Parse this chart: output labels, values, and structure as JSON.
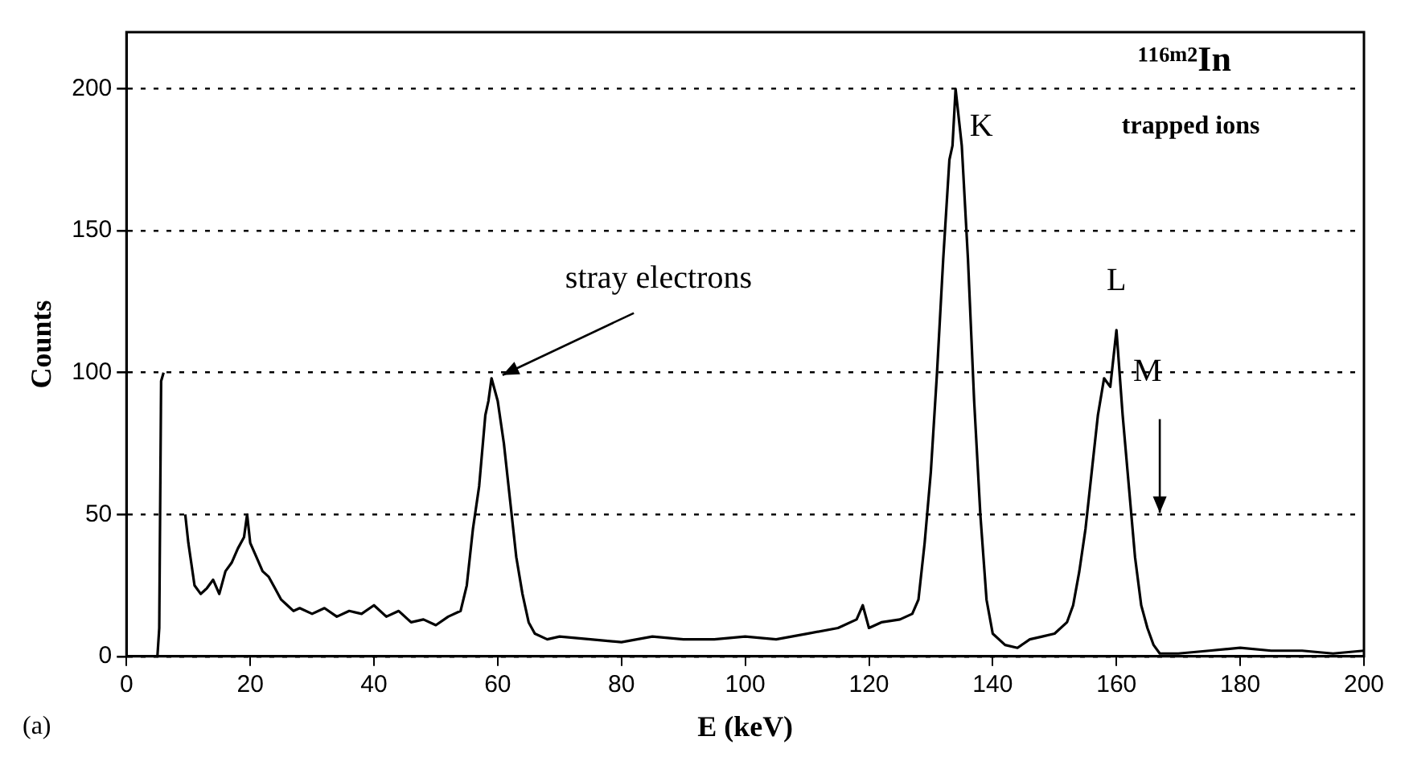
{
  "chart_data": {
    "type": "line",
    "xlabel": "E (keV)",
    "ylabel": "Counts",
    "xlim": [
      0,
      200
    ],
    "xticks": [
      0,
      20,
      40,
      60,
      80,
      100,
      120,
      140,
      160,
      180,
      200
    ],
    "ylim": [
      0,
      220
    ],
    "yticks": [
      0,
      50,
      100,
      150,
      200
    ],
    "grid": "y",
    "marker": "none",
    "line_style": "solid",
    "series": [
      {
        "color": "#000000",
        "x": [
          0,
          5,
          5.3,
          5.6,
          6,
          6.3,
          6.8,
          7.2,
          7.6,
          8.1,
          8.4,
          8.7,
          9.5,
          10,
          11,
          12,
          13,
          14,
          15,
          16,
          17,
          18,
          19,
          19.5,
          20,
          21,
          22,
          23,
          24,
          25,
          26,
          27,
          28,
          30,
          32,
          34,
          36,
          38,
          40,
          42,
          44,
          46,
          48,
          50,
          52,
          54,
          55,
          56,
          57,
          58,
          58.5,
          59,
          60,
          61,
          62,
          63,
          64,
          65,
          66,
          68,
          70,
          75,
          80,
          85,
          90,
          95,
          100,
          105,
          110,
          115,
          118,
          119,
          120,
          122,
          125,
          127,
          128,
          129,
          130,
          131,
          132,
          133,
          133.5,
          134,
          135,
          136,
          137,
          138,
          139,
          140,
          142,
          144,
          146,
          148,
          150,
          152,
          153,
          154,
          155,
          156,
          157,
          158,
          159,
          160,
          161,
          162,
          163,
          164,
          165,
          166,
          167,
          170,
          175,
          180,
          185,
          190,
          195,
          200
        ],
        "values": [
          0,
          0,
          10,
          97,
          100,
          null,
          null,
          null,
          null,
          null,
          null,
          null,
          50,
          40,
          25,
          22,
          24,
          27,
          22,
          30,
          33,
          38,
          42,
          50,
          40,
          35,
          30,
          28,
          24,
          20,
          18,
          16,
          17,
          15,
          17,
          14,
          16,
          15,
          18,
          14,
          16,
          12,
          13,
          11,
          14,
          16,
          25,
          45,
          60,
          85,
          90,
          98,
          90,
          75,
          55,
          35,
          22,
          12,
          8,
          6,
          7,
          6,
          5,
          7,
          6,
          6,
          7,
          6,
          8,
          10,
          13,
          18,
          10,
          12,
          13,
          15,
          20,
          40,
          65,
          100,
          140,
          175,
          180,
          200,
          180,
          140,
          90,
          50,
          20,
          8,
          4,
          3,
          6,
          7,
          8,
          12,
          18,
          30,
          45,
          65,
          85,
          98,
          95,
          115,
          85,
          60,
          35,
          18,
          10,
          4,
          1,
          1,
          2,
          3,
          2,
          2,
          1,
          2
        ]
      }
    ],
    "annotations": [
      "¹¹⁶ᵐ²In",
      "trapped ions",
      {
        "text": "stray electrons",
        "x": 60,
        "y": 98
      },
      {
        "text": "K",
        "x": 134,
        "y": 200
      },
      {
        "text": "L",
        "x": 160,
        "y": 115
      },
      "M",
      "(a)"
    ]
  }
}
